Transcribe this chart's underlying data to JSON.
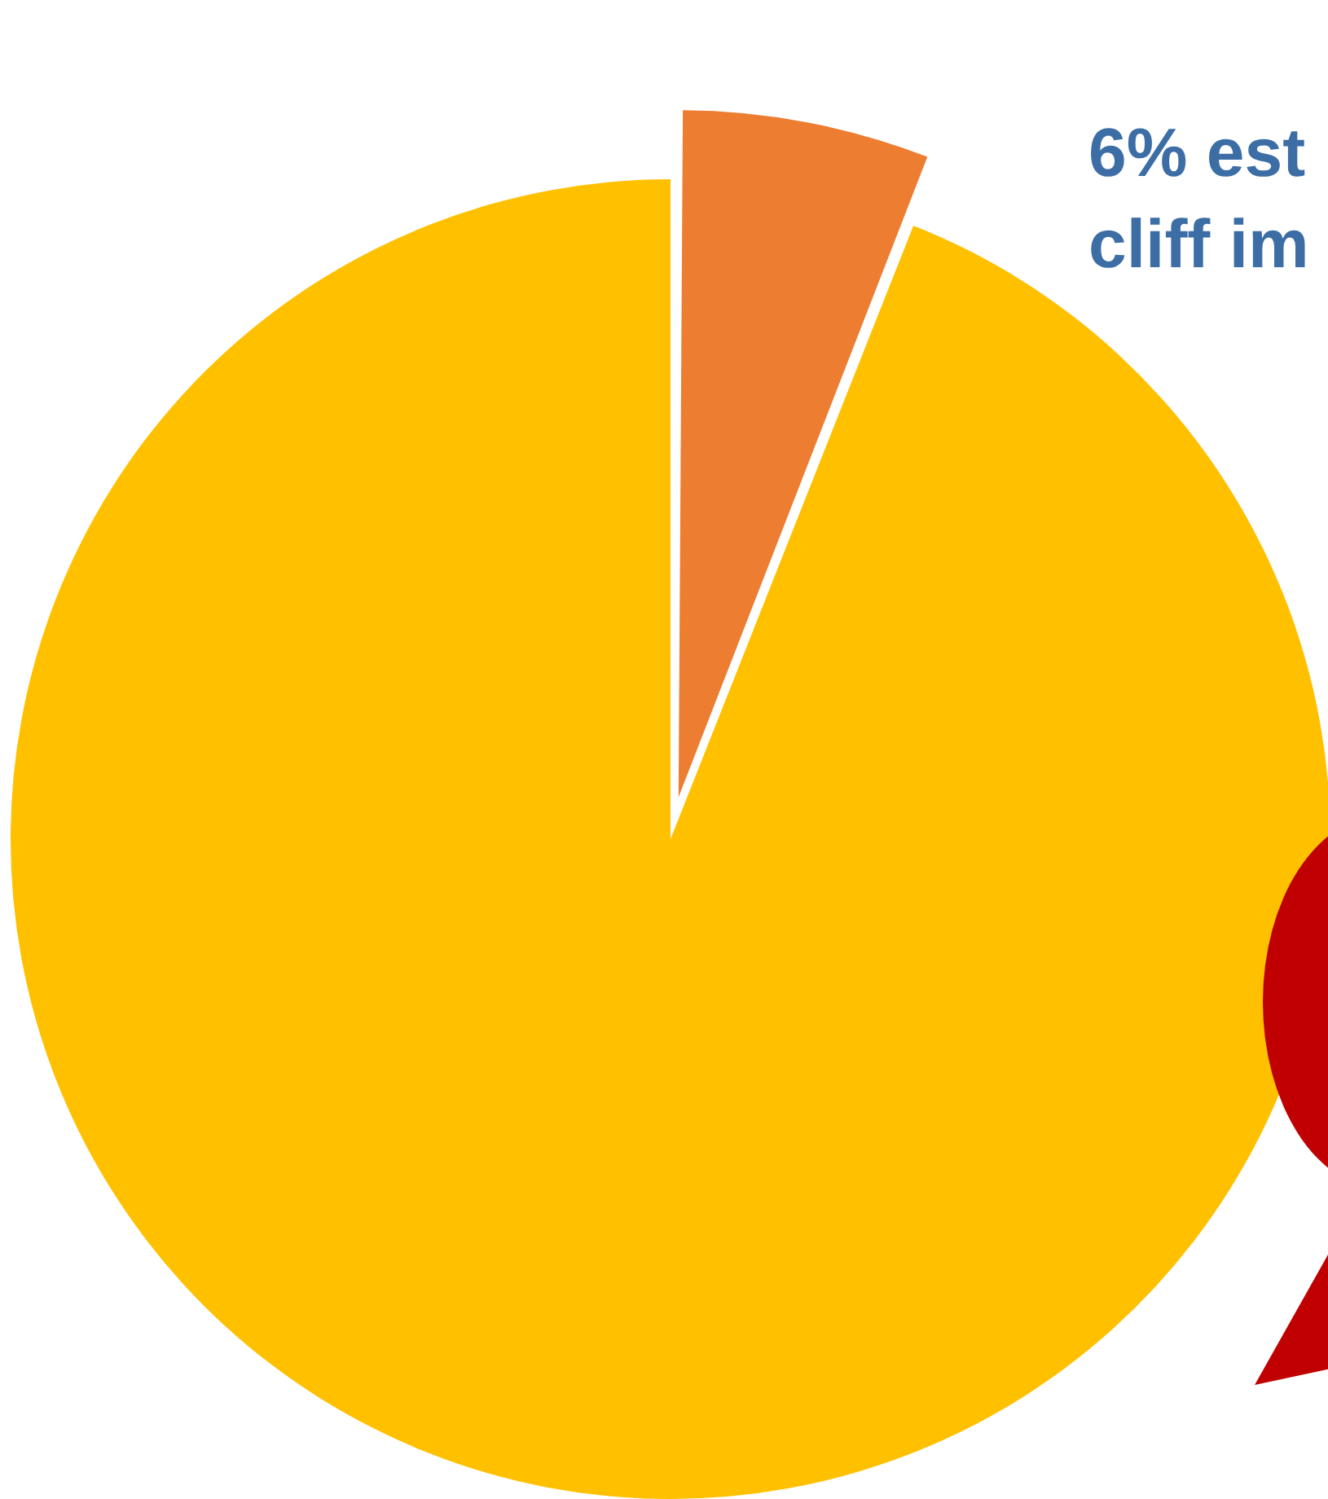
{
  "chart_data": {
    "type": "pie",
    "categories": [
      null,
      null
    ],
    "values": [
      6,
      94
    ],
    "colors": [
      "#ed7d31",
      "#ffc000"
    ],
    "annotations": [
      "6% est\ncliff im"
    ]
  }
}
